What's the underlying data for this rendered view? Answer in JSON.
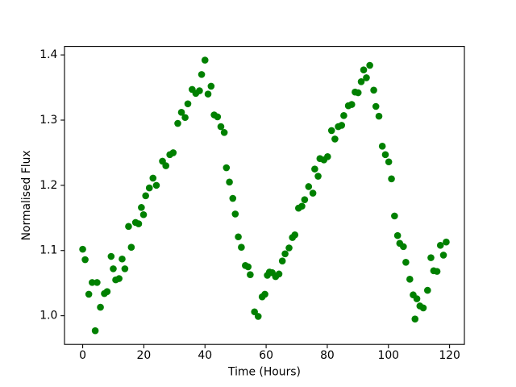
{
  "figure": {
    "background": "#ffffff",
    "border_color": "#000000"
  },
  "chart_data": {
    "type": "scatter",
    "title": "",
    "xlabel": "Time (Hours)",
    "ylabel": "Normalised Flux",
    "marker_color": "#008000",
    "marker_shape": "circle",
    "grid": false,
    "legend": null,
    "xlim": [
      -5.95,
      124.85
    ],
    "ylim": [
      0.956,
      1.413
    ],
    "xticks": [
      0,
      20,
      40,
      60,
      80,
      100,
      120
    ],
    "yticks": [
      1.0,
      1.1,
      1.2,
      1.3,
      1.4
    ],
    "points": [
      [
        0.0,
        1.102
      ],
      [
        0.8,
        1.086
      ],
      [
        2.0,
        1.033
      ],
      [
        3.1,
        1.051
      ],
      [
        4.1,
        0.977
      ],
      [
        4.7,
        1.051
      ],
      [
        5.8,
        1.013
      ],
      [
        7.1,
        1.034
      ],
      [
        8.0,
        1.037
      ],
      [
        9.3,
        1.091
      ],
      [
        10.0,
        1.072
      ],
      [
        10.8,
        1.055
      ],
      [
        11.9,
        1.057
      ],
      [
        12.9,
        1.087
      ],
      [
        13.8,
        1.072
      ],
      [
        15.0,
        1.137
      ],
      [
        15.9,
        1.105
      ],
      [
        17.3,
        1.143
      ],
      [
        18.3,
        1.141
      ],
      [
        19.2,
        1.166
      ],
      [
        19.9,
        1.155
      ],
      [
        20.6,
        1.184
      ],
      [
        21.8,
        1.196
      ],
      [
        23.0,
        1.211
      ],
      [
        24.1,
        1.2
      ],
      [
        26.1,
        1.237
      ],
      [
        27.2,
        1.23
      ],
      [
        28.5,
        1.247
      ],
      [
        29.6,
        1.25
      ],
      [
        31.1,
        1.295
      ],
      [
        32.3,
        1.312
      ],
      [
        33.5,
        1.304
      ],
      [
        34.4,
        1.325
      ],
      [
        35.8,
        1.347
      ],
      [
        37.0,
        1.341
      ],
      [
        38.2,
        1.345
      ],
      [
        38.9,
        1.37
      ],
      [
        40.0,
        1.392
      ],
      [
        41.0,
        1.34
      ],
      [
        42.0,
        1.352
      ],
      [
        43.0,
        1.308
      ],
      [
        44.1,
        1.305
      ],
      [
        45.2,
        1.29
      ],
      [
        46.3,
        1.281
      ],
      [
        47.0,
        1.227
      ],
      [
        48.0,
        1.205
      ],
      [
        49.1,
        1.18
      ],
      [
        49.9,
        1.156
      ],
      [
        50.9,
        1.121
      ],
      [
        51.9,
        1.105
      ],
      [
        53.2,
        1.077
      ],
      [
        54.1,
        1.075
      ],
      [
        54.8,
        1.063
      ],
      [
        56.2,
        1.006
      ],
      [
        57.4,
        0.999
      ],
      [
        58.7,
        1.029
      ],
      [
        59.6,
        1.033
      ],
      [
        60.4,
        1.062
      ],
      [
        61.1,
        1.067
      ],
      [
        62.0,
        1.066
      ],
      [
        63.1,
        1.06
      ],
      [
        64.2,
        1.064
      ],
      [
        65.3,
        1.084
      ],
      [
        66.2,
        1.095
      ],
      [
        67.5,
        1.104
      ],
      [
        68.6,
        1.12
      ],
      [
        69.4,
        1.124
      ],
      [
        70.6,
        1.165
      ],
      [
        71.7,
        1.168
      ],
      [
        72.6,
        1.178
      ],
      [
        73.9,
        1.198
      ],
      [
        75.3,
        1.188
      ],
      [
        75.9,
        1.225
      ],
      [
        77.0,
        1.214
      ],
      [
        77.6,
        1.241
      ],
      [
        78.9,
        1.239
      ],
      [
        80.1,
        1.244
      ],
      [
        81.4,
        1.284
      ],
      [
        82.5,
        1.271
      ],
      [
        83.6,
        1.29
      ],
      [
        84.7,
        1.292
      ],
      [
        85.4,
        1.307
      ],
      [
        86.9,
        1.322
      ],
      [
        88.0,
        1.324
      ],
      [
        89.1,
        1.343
      ],
      [
        90.1,
        1.342
      ],
      [
        91.1,
        1.359
      ],
      [
        91.9,
        1.377
      ],
      [
        92.8,
        1.365
      ],
      [
        93.9,
        1.384
      ],
      [
        95.2,
        1.346
      ],
      [
        95.9,
        1.321
      ],
      [
        96.9,
        1.306
      ],
      [
        98.0,
        1.26
      ],
      [
        99.0,
        1.247
      ],
      [
        100.1,
        1.236
      ],
      [
        101.0,
        1.21
      ],
      [
        102.0,
        1.153
      ],
      [
        103.0,
        1.123
      ],
      [
        103.7,
        1.111
      ],
      [
        104.9,
        1.106
      ],
      [
        105.7,
        1.082
      ],
      [
        107.0,
        1.056
      ],
      [
        108.1,
        1.032
      ],
      [
        108.7,
        0.995
      ],
      [
        109.3,
        1.026
      ],
      [
        110.3,
        1.015
      ],
      [
        111.4,
        1.012
      ],
      [
        112.8,
        1.039
      ],
      [
        113.9,
        1.089
      ],
      [
        114.8,
        1.069
      ],
      [
        115.9,
        1.068
      ],
      [
        117.0,
        1.108
      ],
      [
        118.0,
        1.093
      ],
      [
        118.9,
        1.113
      ]
    ]
  }
}
